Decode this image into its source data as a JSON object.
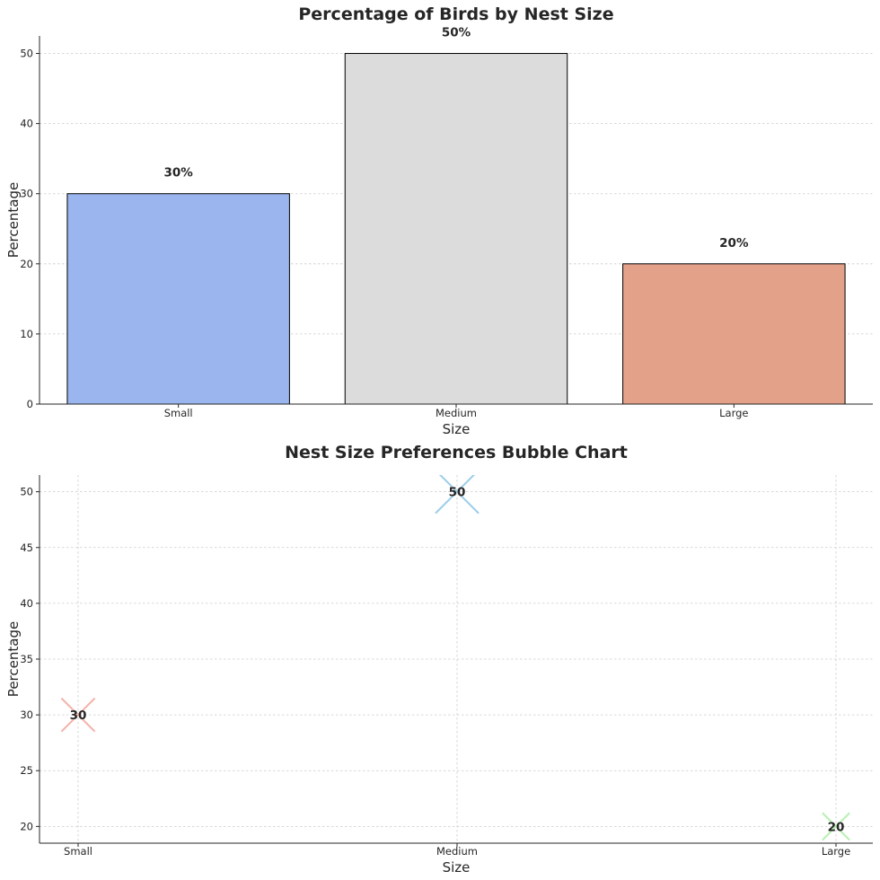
{
  "chart_data": [
    {
      "type": "bar",
      "title": "Percentage of Birds by Nest Size",
      "xlabel": "Size",
      "ylabel": "Percentage",
      "categories": [
        "Small",
        "Medium",
        "Large"
      ],
      "values": [
        30,
        50,
        20
      ],
      "data_labels": [
        "30%",
        "50%",
        "20%"
      ],
      "colors": [
        "#9bb5ee",
        "#dcdcdc",
        "#e4a18a"
      ],
      "ylim": [
        0,
        52.5
      ],
      "yticks": [
        0,
        10,
        20,
        30,
        40,
        50
      ],
      "grid": "y"
    },
    {
      "type": "scatter",
      "title": "Nest Size Preferences Bubble Chart",
      "xlabel": "Size",
      "ylabel": "Percentage",
      "categories": [
        "Small",
        "Medium",
        "Large"
      ],
      "values": [
        30,
        50,
        20
      ],
      "data_labels": [
        "30",
        "50",
        "20"
      ],
      "colors": [
        "#f4b1a8",
        "#9ccde9",
        "#b4f0b0"
      ],
      "marker": "x",
      "marker_size_by_value": true,
      "ylim": [
        18.5,
        51.5
      ],
      "yticks": [
        20,
        25,
        30,
        35,
        40,
        45,
        50
      ],
      "grid": "both"
    }
  ]
}
